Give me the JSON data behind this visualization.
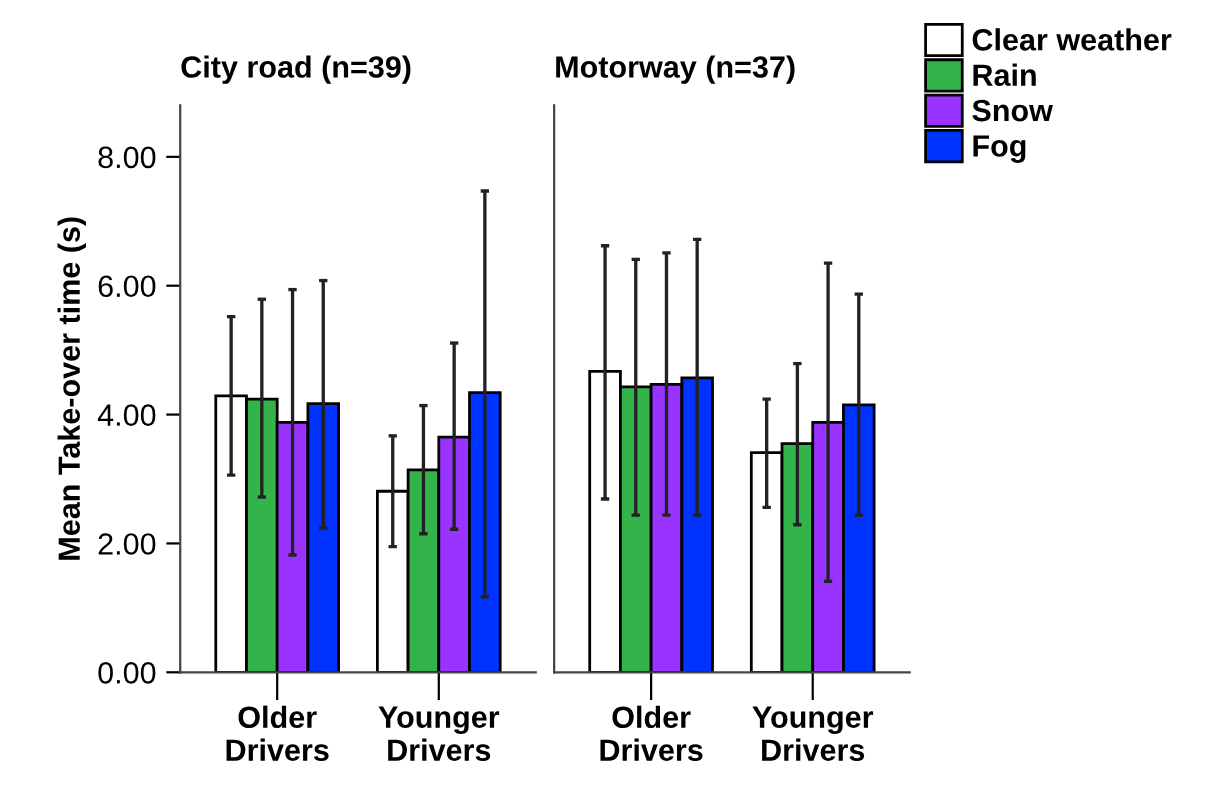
{
  "chart_data": [
    {
      "type": "bar",
      "title": "City road (n=39)",
      "ylabel": "Mean Take-over time (s)",
      "categories": [
        "Older Drivers",
        "Younger Drivers"
      ],
      "ylim": [
        0,
        8.8
      ],
      "yticks": [
        {
          "value": 0,
          "label": "0.00"
        },
        {
          "value": 2,
          "label": "2.00"
        },
        {
          "value": 4,
          "label": "4.00"
        },
        {
          "value": 6,
          "label": "6.00"
        },
        {
          "value": 8,
          "label": "8.00"
        }
      ],
      "grid": false,
      "legend": false,
      "series": [
        {
          "color": "#ffffff",
          "values": [
            4.29,
            2.81
          ],
          "errors": [
            [
              3.06,
              5.52
            ],
            [
              1.95,
              3.67
            ]
          ]
        },
        {
          "color": "#33b44a",
          "values": [
            4.24,
            3.14
          ],
          "errors": [
            [
              2.72,
              5.79
            ],
            [
              2.15,
              4.14
            ]
          ]
        },
        {
          "color": "#9933ff",
          "values": [
            3.88,
            3.65
          ],
          "errors": [
            [
              1.82,
              5.94
            ],
            [
              2.22,
              5.11
            ]
          ]
        },
        {
          "color": "#0033ff",
          "values": [
            4.17,
            4.34
          ],
          "errors": [
            [
              2.24,
              6.08
            ],
            [
              1.17,
              7.47
            ]
          ]
        }
      ]
    },
    {
      "type": "bar",
      "title": "Motorway (n=37)",
      "categories": [
        "Older Drivers",
        "Younger Drivers"
      ],
      "ylim": [
        0,
        8.8
      ],
      "tick_labels": "x",
      "grid": false,
      "legend": "top right",
      "series": [
        {
          "name": "Clear weather",
          "color": "#ffffff",
          "values": [
            4.67,
            3.41
          ],
          "errors": [
            [
              2.69,
              6.62
            ],
            [
              2.56,
              4.24
            ]
          ]
        },
        {
          "name": "Rain",
          "color": "#33b44a",
          "values": [
            4.43,
            3.55
          ],
          "errors": [
            [
              2.44,
              6.41
            ],
            [
              2.29,
              4.79
            ]
          ]
        },
        {
          "name": "Snow",
          "color": "#9933ff",
          "values": [
            4.47,
            3.88
          ],
          "errors": [
            [
              2.44,
              6.51
            ],
            [
              1.41,
              6.35
            ]
          ]
        },
        {
          "name": "Fog",
          "color": "#0033ff",
          "values": [
            4.57,
            4.15
          ],
          "errors": [
            [
              2.44,
              6.72
            ],
            [
              2.44,
              5.87
            ]
          ]
        }
      ]
    }
  ]
}
